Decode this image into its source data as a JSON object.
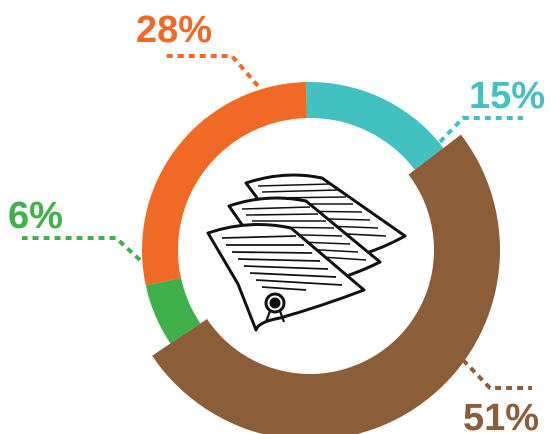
{
  "chart_data": {
    "type": "pie",
    "style": "donut",
    "slices": [
      {
        "label": "15%",
        "value": 15,
        "color": "#43c1c0"
      },
      {
        "label": "51%",
        "value": 51,
        "color": "#8c5d39"
      },
      {
        "label": "6%",
        "value": 6,
        "color": "#3fb04a"
      },
      {
        "label": "28%",
        "value": 28,
        "color": "#f06a25"
      }
    ],
    "center_icon": "documents-icon",
    "legend": "none"
  }
}
